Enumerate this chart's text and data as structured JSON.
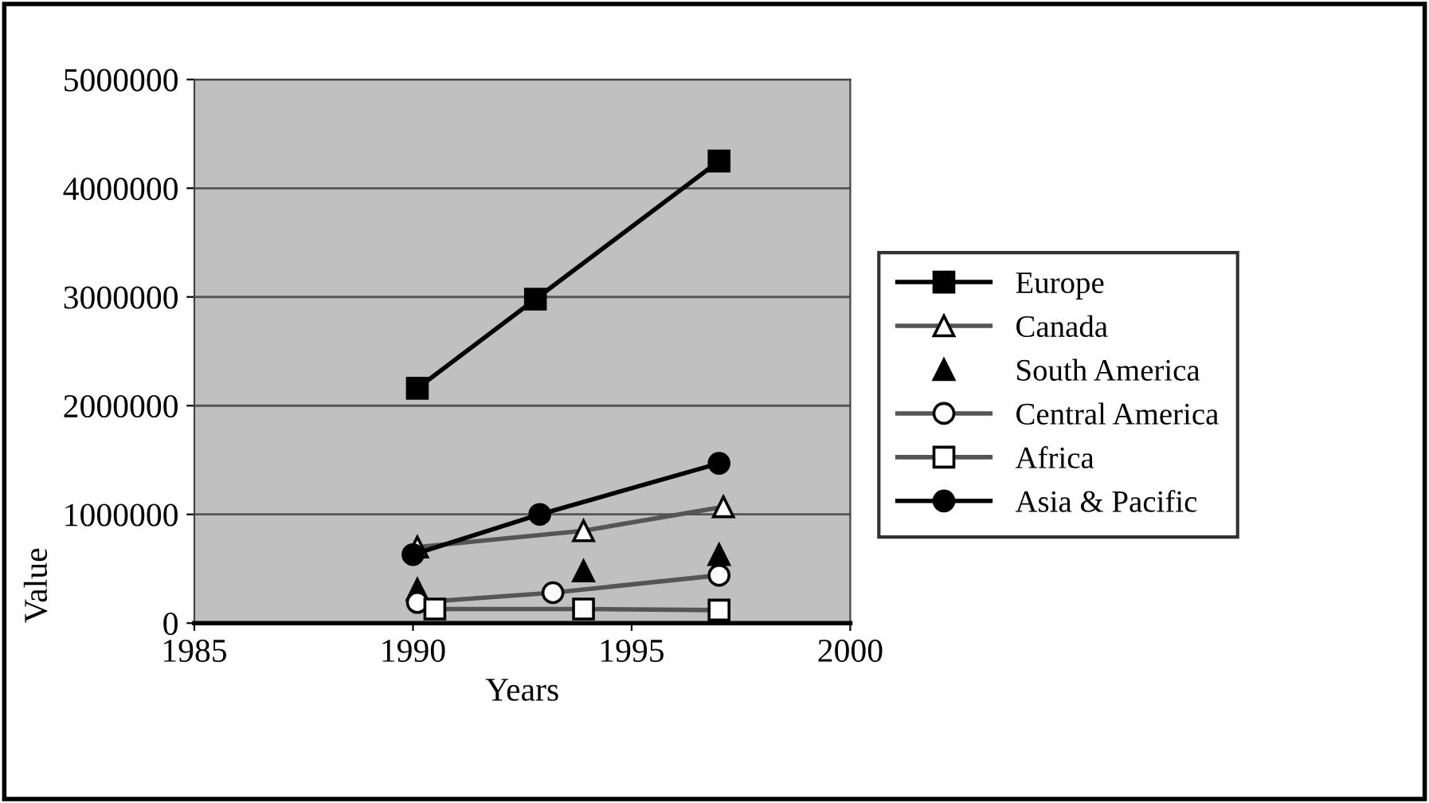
{
  "chart_data": {
    "type": "line",
    "xlabel": "Years",
    "ylabel": "Value",
    "xlim": [
      1985,
      2000
    ],
    "xticks": [
      1985,
      1990,
      1995,
      2000
    ],
    "ylim": [
      0,
      5000000
    ],
    "yticks": [
      0,
      1000000,
      2000000,
      3000000,
      4000000,
      5000000
    ],
    "grid": "y",
    "legend": "right",
    "series": [
      {
        "name": "Europe",
        "color": "#000000",
        "marker": "square",
        "x": [
          1990.1,
          1992.8,
          1997.0
        ],
        "values": [
          2160000,
          2980000,
          4250000
        ]
      },
      {
        "name": "Canada",
        "color": "#ffffff",
        "marker": "triangle",
        "x": [
          1990.1,
          1993.9,
          1997.1
        ],
        "values": [
          700000,
          850000,
          1070000
        ]
      },
      {
        "name": "South America",
        "type": "scatter",
        "color": "#000000",
        "marker": "triangle",
        "x": [
          1990.1,
          1993.9,
          1997.0
        ],
        "values": [
          310000,
          480000,
          630000
        ]
      },
      {
        "name": "Central America",
        "color": "#ffffff",
        "marker": "circle",
        "x": [
          1990.1,
          1993.2,
          1997.0
        ],
        "values": [
          190000,
          280000,
          440000
        ]
      },
      {
        "name": "Africa",
        "color": "#ffffff",
        "marker": "square",
        "x": [
          1990.5,
          1993.9,
          1997.0
        ],
        "values": [
          130000,
          130000,
          120000
        ]
      },
      {
        "name": "Asia & Pacific",
        "color": "#000000",
        "marker": "circle",
        "x": [
          1990.0,
          1992.9,
          1997.0
        ],
        "values": [
          630000,
          1000000,
          1470000
        ]
      }
    ]
  }
}
